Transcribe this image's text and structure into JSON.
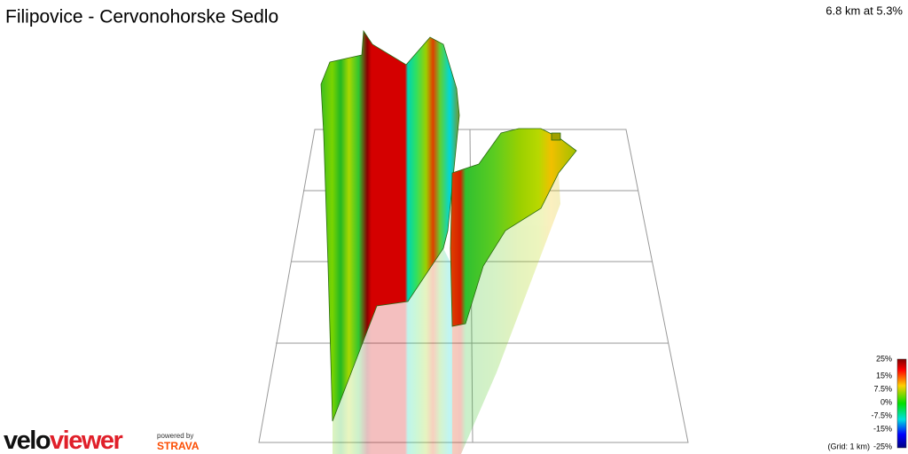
{
  "header": {
    "title": "Filipovice - Cervonohorske Sedlo",
    "summary": "6.8 km at 5.3%"
  },
  "legend": {
    "labels": [
      "25%",
      "15%",
      "7.5%",
      "0%",
      "-7.5%",
      "-15%",
      "-25%"
    ],
    "grid_note": "(Grid: 1 km)"
  },
  "logo": {
    "velo": "velo",
    "viewer": "viewer",
    "powered_by": "powered by",
    "strava": "STRAVA"
  }
}
